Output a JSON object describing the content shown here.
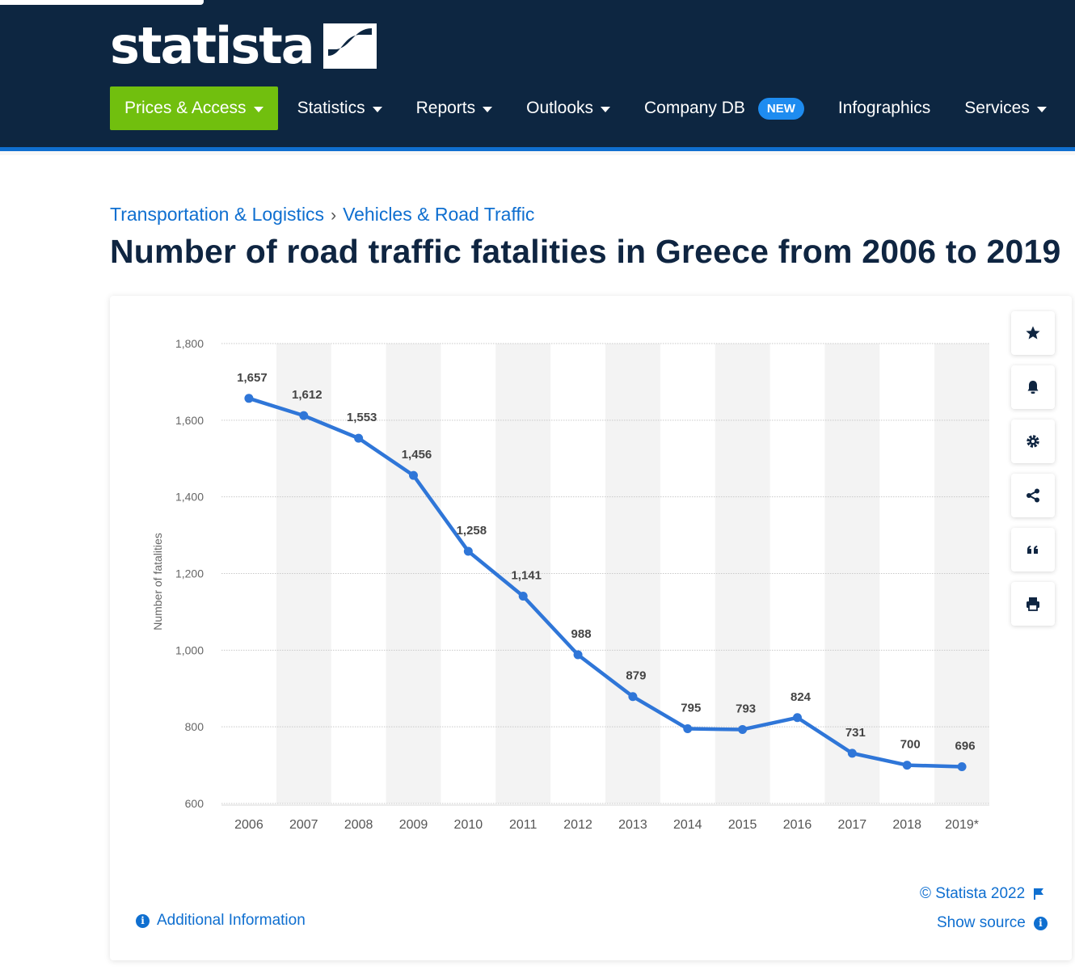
{
  "header": {
    "logo_text": "statista",
    "nav": [
      {
        "label": "Prices & Access",
        "dropdown": true
      },
      {
        "label": "Statistics",
        "dropdown": true
      },
      {
        "label": "Reports",
        "dropdown": true
      },
      {
        "label": "Outlooks",
        "dropdown": true
      },
      {
        "label": "Company DB",
        "badge": "NEW"
      },
      {
        "label": "Infographics"
      },
      {
        "label": "Services",
        "dropdown": true
      }
    ]
  },
  "breadcrumb": {
    "parent": "Transportation & Logistics",
    "separator": "›",
    "current": "Vehicles & Road Traffic"
  },
  "page_title": "Number of road traffic fatalities in Greece from 2006 to 2019",
  "side_tools": [
    "star-icon",
    "bell-icon",
    "gear-icon",
    "share-icon",
    "quote-icon",
    "print-icon"
  ],
  "footer": {
    "additional_info": "Additional Information",
    "copyright": "© Statista 2022",
    "show_source": "Show source"
  },
  "colors": {
    "line": "#2f76d8",
    "nav_bg": "#0d2641",
    "accent_green": "#71bf0e",
    "link": "#0f6fd0"
  },
  "chart_data": {
    "type": "line",
    "categories": [
      "2006",
      "2007",
      "2008",
      "2009",
      "2010",
      "2011",
      "2012",
      "2013",
      "2014",
      "2015",
      "2016",
      "2017",
      "2018",
      "2019*"
    ],
    "values": [
      1657,
      1612,
      1553,
      1456,
      1258,
      1141,
      988,
      879,
      795,
      793,
      824,
      731,
      700,
      696
    ],
    "data_labels": [
      "1,657",
      "1,612",
      "1,553",
      "1,456",
      "1,258",
      "1,141",
      "988",
      "879",
      "795",
      "793",
      "824",
      "731",
      "700",
      "696"
    ],
    "ylabel": "Number of fatalities",
    "ylim": [
      600,
      1800
    ],
    "yticks": [
      600,
      800,
      1000,
      1200,
      1400,
      1600,
      1800
    ],
    "ytick_labels": [
      "600",
      "800",
      "1,000",
      "1,200",
      "1,400",
      "1,600",
      "1,800"
    ],
    "grid": true
  }
}
